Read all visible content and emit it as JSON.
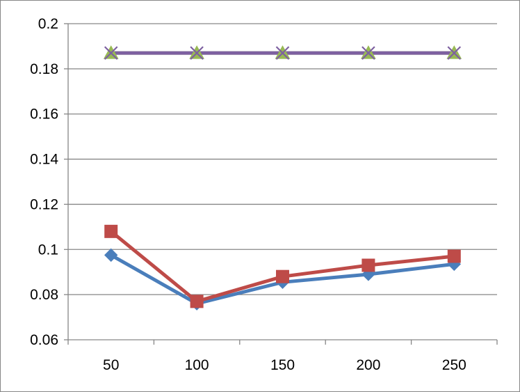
{
  "chart_data": {
    "type": "line",
    "categories": [
      "50",
      "100",
      "150",
      "200",
      "250"
    ],
    "ylim": [
      0.06,
      0.2
    ],
    "yticks": [
      0.06,
      0.08,
      0.1,
      0.12,
      0.14,
      0.16,
      0.18,
      0.2
    ],
    "ytick_labels": [
      "0.06",
      "0.08",
      "0.1",
      "0.12",
      "0.14",
      "0.16",
      "0.18",
      "0.2"
    ],
    "grid": true,
    "legend": "none",
    "series": [
      {
        "color": "#4a7ebb",
        "marker": "diamond",
        "values": [
          0.0975,
          0.076,
          0.0855,
          0.089,
          0.0935
        ]
      },
      {
        "color": "#be4b48",
        "marker": "square",
        "values": [
          0.108,
          0.077,
          0.088,
          0.093,
          0.097
        ]
      },
      {
        "color": "#98b954",
        "marker": "triangle",
        "values": [
          0.187,
          0.187,
          0.187,
          0.187,
          0.187
        ]
      },
      {
        "color": "#7d60a0",
        "marker": "x",
        "values": [
          0.187,
          0.187,
          0.187,
          0.187,
          0.187
        ]
      }
    ]
  }
}
